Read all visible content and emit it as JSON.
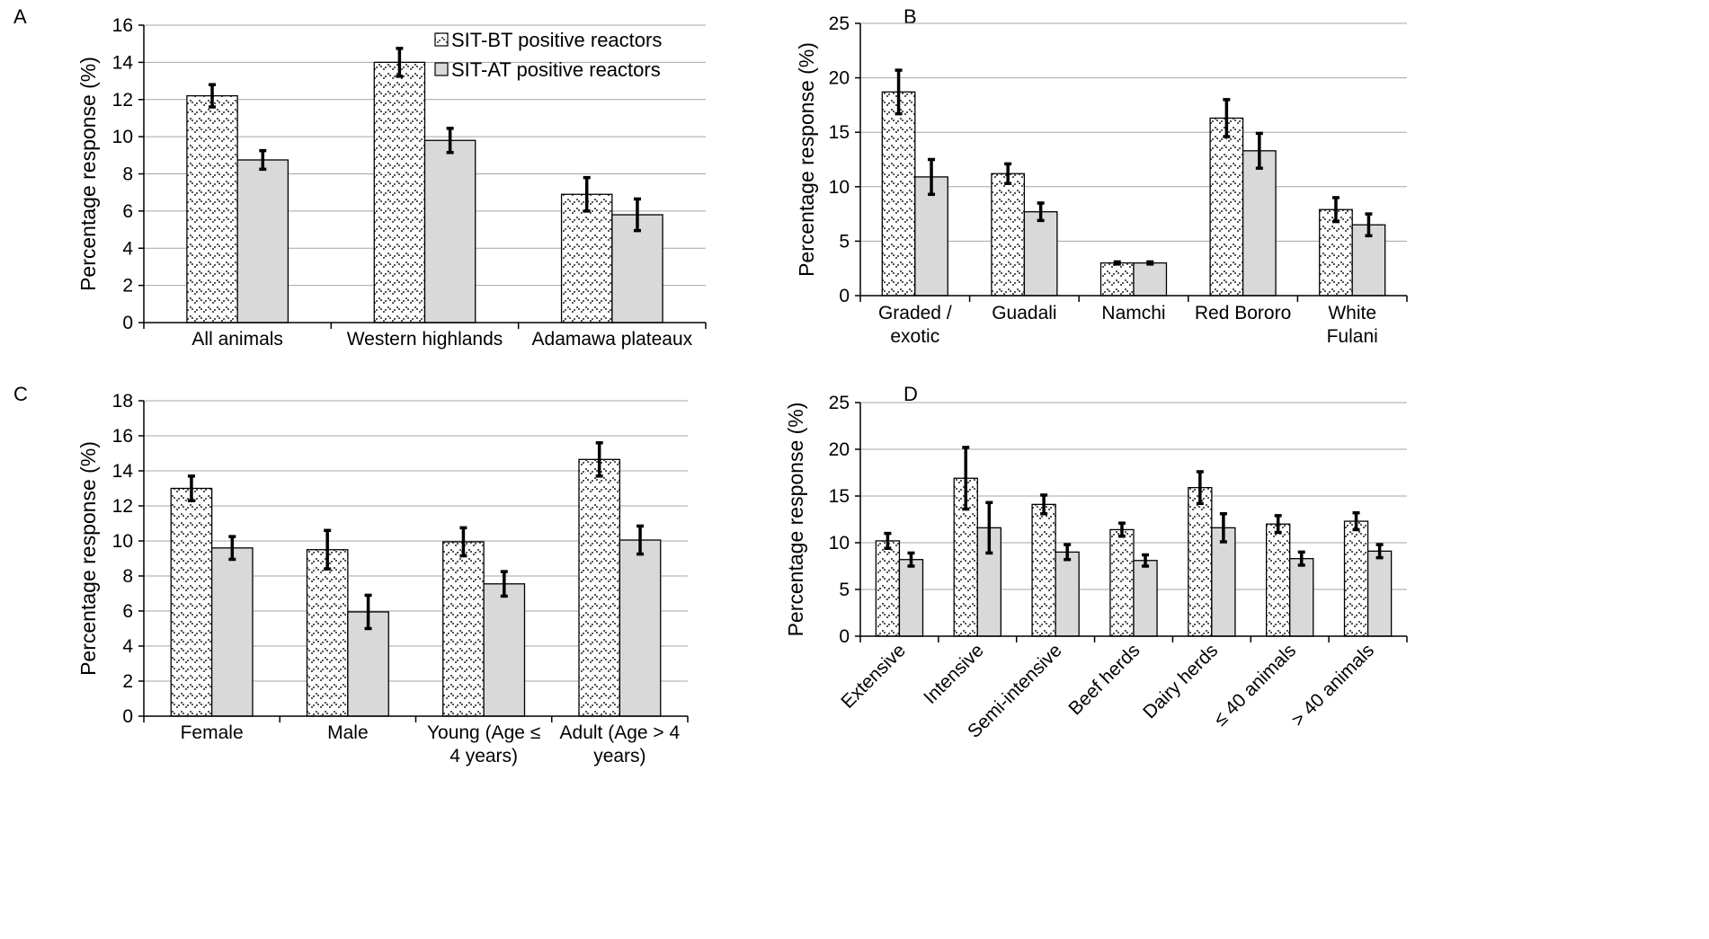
{
  "colors": {
    "bt_fill": "#ffffff",
    "bt_dots": "#555555",
    "at_fill": "#d9d9d9",
    "bar_stroke": "#000000",
    "error_bar": "#000000",
    "gridline": "#a6a6a6",
    "axis": "#000000"
  },
  "icons": {
    "bt_pattern": "dotted-pattern-swatch",
    "at_pattern": "solid-gray-swatch"
  },
  "chart_data": [
    {
      "panel_label": "A",
      "type": "bar",
      "ylabel": "Percentage response (%)",
      "ylim": [
        0,
        16
      ],
      "ytick_step": 2,
      "grid": true,
      "xtick_rotation": 0,
      "legend": "top-right",
      "categories": [
        [
          "All animals"
        ],
        [
          "Western highlands"
        ],
        [
          "Adamawa plateaux"
        ]
      ],
      "series": [
        {
          "name": "SIT-BT positive reactors",
          "pattern": "dots",
          "values": [
            12.2,
            14.0,
            6.9
          ],
          "error": [
            0.6,
            0.75,
            0.9
          ]
        },
        {
          "name": "SIT-AT positive reactors",
          "pattern": "solid",
          "values": [
            8.75,
            9.8,
            5.8
          ],
          "error": [
            0.5,
            0.65,
            0.85
          ]
        }
      ]
    },
    {
      "panel_label": "B",
      "type": "bar",
      "ylabel": "Percentage response (%)",
      "ylim": [
        0,
        25
      ],
      "ytick_step": 5,
      "grid": true,
      "xtick_rotation": 0,
      "categories": [
        [
          "Graded /",
          "exotic"
        ],
        [
          "Guadali"
        ],
        [
          "Namchi"
        ],
        [
          "Red Bororo"
        ],
        [
          "White",
          "Fulani"
        ]
      ],
      "series": [
        {
          "pattern": "dots",
          "values": [
            18.7,
            11.2,
            3.0,
            16.3,
            7.9
          ],
          "error": [
            2.0,
            0.9,
            0.1,
            1.7,
            1.1
          ]
        },
        {
          "pattern": "solid",
          "values": [
            10.9,
            7.7,
            3.0,
            13.3,
            6.5
          ],
          "error": [
            1.6,
            0.8,
            0.1,
            1.6,
            1.0
          ]
        }
      ]
    },
    {
      "panel_label": "C",
      "type": "bar",
      "ylabel": "Percentage response (%)",
      "ylim": [
        0,
        18
      ],
      "ytick_step": 2,
      "grid": true,
      "xtick_rotation": 0,
      "categories": [
        [
          "Female"
        ],
        [
          "Male"
        ],
        [
          "Young (Age ≤",
          "4 years)"
        ],
        [
          "Adult (Age > 4",
          "years)"
        ]
      ],
      "series": [
        {
          "pattern": "dots",
          "values": [
            13.0,
            9.5,
            9.95,
            14.65
          ],
          "error": [
            0.7,
            1.1,
            0.8,
            0.95
          ]
        },
        {
          "pattern": "solid",
          "values": [
            9.6,
            5.95,
            7.55,
            10.05
          ],
          "error": [
            0.65,
            0.95,
            0.7,
            0.8
          ]
        }
      ]
    },
    {
      "panel_label": "D",
      "type": "bar",
      "ylabel": "Percentage response (%)",
      "ylim": [
        0,
        25
      ],
      "ytick_step": 5,
      "grid": true,
      "xtick_rotation": -45,
      "categories": [
        [
          "Extensive"
        ],
        [
          "Intensive"
        ],
        [
          "Semi-intensive"
        ],
        [
          "Beef herds"
        ],
        [
          "Dairy herds"
        ],
        [
          "≤ 40 animals"
        ],
        [
          "> 40 animals"
        ]
      ],
      "series": [
        {
          "pattern": "dots",
          "values": [
            10.2,
            16.9,
            14.1,
            11.4,
            15.9,
            12.0,
            12.3
          ],
          "error": [
            0.8,
            3.3,
            1.0,
            0.7,
            1.7,
            0.9,
            0.9
          ]
        },
        {
          "pattern": "solid",
          "values": [
            8.2,
            11.6,
            9.0,
            8.1,
            11.6,
            8.3,
            9.1
          ],
          "error": [
            0.7,
            2.7,
            0.8,
            0.6,
            1.5,
            0.7,
            0.7
          ]
        }
      ]
    }
  ]
}
